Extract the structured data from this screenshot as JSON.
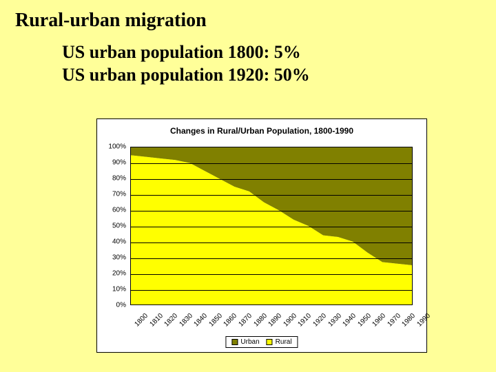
{
  "page": {
    "title": "Rural-urban migration",
    "background_color": "#ffff99"
  },
  "stats": {
    "line1": "US urban population 1800:   5%",
    "line2": "US urban population 1920: 50%"
  },
  "chart": {
    "type": "stacked-area",
    "title": "Changes in Rural/Urban Population, 1800-1990",
    "title_fontsize": 12,
    "label_fontsize": 10,
    "background_color": "#ffffff",
    "plot_background_color": "#c0c0c0",
    "grid_color": "#000000",
    "ylim": [
      0,
      100
    ],
    "ytick_step": 10,
    "y_labels": [
      "0%",
      "10%",
      "20%",
      "30%",
      "40%",
      "50%",
      "60%",
      "70%",
      "80%",
      "90%",
      "100%"
    ],
    "x_categories": [
      "1800",
      "1810",
      "1820",
      "1830",
      "1840",
      "1850",
      "1860",
      "1870",
      "1880",
      "1890",
      "1900",
      "1910",
      "1920",
      "1930",
      "1940",
      "1950",
      "1960",
      "1970",
      "1980",
      "1990"
    ],
    "series": [
      {
        "name": "Urban",
        "color": "#808000",
        "values": [
          5,
          6,
          7,
          8,
          10,
          15,
          20,
          25,
          28,
          35,
          40,
          46,
          50,
          56,
          57,
          60,
          67,
          73,
          74,
          75
        ]
      },
      {
        "name": "Rural",
        "color": "#ffff00",
        "values": [
          95,
          94,
          93,
          92,
          90,
          85,
          80,
          75,
          72,
          65,
          60,
          54,
          50,
          44,
          43,
          40,
          33,
          27,
          26,
          25
        ]
      }
    ],
    "legend": {
      "position": "bottom",
      "items": [
        {
          "label": "Urban",
          "color": "#808000"
        },
        {
          "label": "Rural",
          "color": "#ffff00"
        }
      ]
    }
  }
}
